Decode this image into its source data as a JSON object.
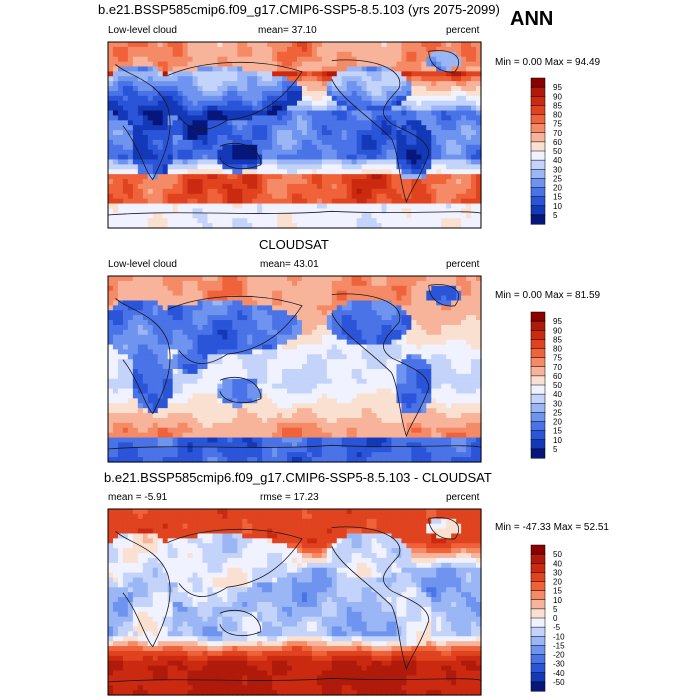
{
  "season": "ANN",
  "chart_data": [
    {
      "type": "heatmap",
      "title": "b.e21.BSSP585cmip6.f09_g17.CMIP6-SSP5-8.5.103 (yrs 2075-2099)",
      "left_label": "Low-level cloud",
      "center_label": "mean=  37.10",
      "right_label": "percent",
      "mean": 37.1,
      "min": 0.0,
      "max": 94.49,
      "minmax_label": "Min =   0.00 Max =  94.49",
      "colorbar_levels": [
        "95",
        "90",
        "85",
        "80",
        "75",
        "70",
        "60",
        "50",
        "40",
        "30",
        "25",
        "20",
        "15",
        "10",
        "5"
      ],
      "colorbar_colors": [
        "#8b0000",
        "#b01a0a",
        "#cc2a10",
        "#e0431f",
        "#f0623a",
        "#f58a66",
        "#f7b49a",
        "#fae0d0",
        "#f0f2ff",
        "#c3d3fa",
        "#9ab6f5",
        "#6f94ef",
        "#4a73e8",
        "#2b55d8",
        "#1338b8",
        "#06167a"
      ]
    },
    {
      "type": "heatmap",
      "title": "CLOUDSAT",
      "left_label": "Low-level cloud",
      "center_label": "mean=  43.01",
      "right_label": "percent",
      "mean": 43.01,
      "min": 0.0,
      "max": 81.59,
      "minmax_label": "Min =   0.00 Max =  81.59",
      "colorbar_levels": [
        "95",
        "90",
        "85",
        "80",
        "75",
        "70",
        "60",
        "50",
        "40",
        "30",
        "25",
        "20",
        "15",
        "10",
        "5"
      ],
      "colorbar_colors": [
        "#8b0000",
        "#b01a0a",
        "#cc2a10",
        "#e0431f",
        "#f0623a",
        "#f58a66",
        "#f7b49a",
        "#fae0d0",
        "#f0f2ff",
        "#c3d3fa",
        "#9ab6f5",
        "#6f94ef",
        "#4a73e8",
        "#2b55d8",
        "#1338b8",
        "#06167a"
      ]
    },
    {
      "type": "heatmap",
      "title": "b.e21.BSSP585cmip6.f09_g17.CMIP6-SSP5-8.5.103 - CLOUDSAT",
      "left_label": "mean =  -5.91",
      "center_label": "rmse =  17.23",
      "right_label": "percent",
      "mean": -5.91,
      "rmse": 17.23,
      "min": -47.33,
      "max": 52.51,
      "minmax_label": "Min = -47.33 Max =  52.51",
      "colorbar_levels": [
        "50",
        "40",
        "30",
        "20",
        "15",
        "10",
        "5",
        "0",
        "-5",
        "-10",
        "-15",
        "-20",
        "-30",
        "-40",
        "-50"
      ],
      "colorbar_colors": [
        "#8b0000",
        "#b01a0a",
        "#cc2a10",
        "#e0431f",
        "#f0623a",
        "#f58a66",
        "#f7b49a",
        "#fae0d0",
        "#f0f2ff",
        "#c3d3fa",
        "#9ab6f5",
        "#6f94ef",
        "#4a73e8",
        "#2b55d8",
        "#1338b8",
        "#06167a"
      ]
    }
  ]
}
